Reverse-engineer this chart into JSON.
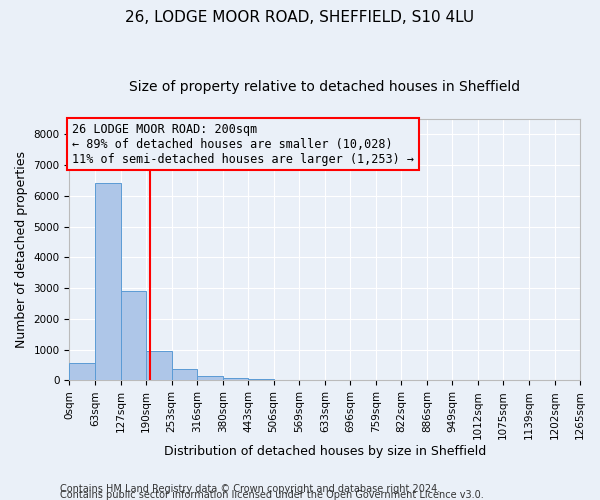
{
  "title1": "26, LODGE MOOR ROAD, SHEFFIELD, S10 4LU",
  "title2": "Size of property relative to detached houses in Sheffield",
  "xlabel": "Distribution of detached houses by size in Sheffield",
  "ylabel": "Number of detached properties",
  "bar_edges": [
    0,
    63,
    127,
    190,
    253,
    316,
    380,
    443,
    506,
    569,
    633,
    696,
    759,
    822,
    886,
    949,
    1012,
    1075,
    1139,
    1202,
    1265
  ],
  "bar_heights": [
    580,
    6400,
    2900,
    970,
    360,
    155,
    90,
    55,
    0,
    0,
    0,
    0,
    0,
    0,
    0,
    0,
    0,
    0,
    0,
    0
  ],
  "bar_color": "#aec6e8",
  "bar_edgecolor": "#5b9bd5",
  "property_line_x": 200,
  "property_line_color": "red",
  "ylim": [
    0,
    8500
  ],
  "yticks": [
    0,
    1000,
    2000,
    3000,
    4000,
    5000,
    6000,
    7000,
    8000
  ],
  "annotation_line1": "26 LODGE MOOR ROAD: 200sqm",
  "annotation_line2": "← 89% of detached houses are smaller (10,028)",
  "annotation_line3": "11% of semi-detached houses are larger (1,253) →",
  "annotation_box_color": "red",
  "footer1": "Contains HM Land Registry data © Crown copyright and database right 2024.",
  "footer2": "Contains public sector information licensed under the Open Government Licence v3.0.",
  "bg_color": "#eaf0f8",
  "grid_color": "white",
  "title1_fontsize": 11,
  "title2_fontsize": 10,
  "ylabel_fontsize": 9,
  "xlabel_fontsize": 9,
  "tick_fontsize": 7.5,
  "annotation_fontsize": 8.5,
  "footer_fontsize": 7
}
